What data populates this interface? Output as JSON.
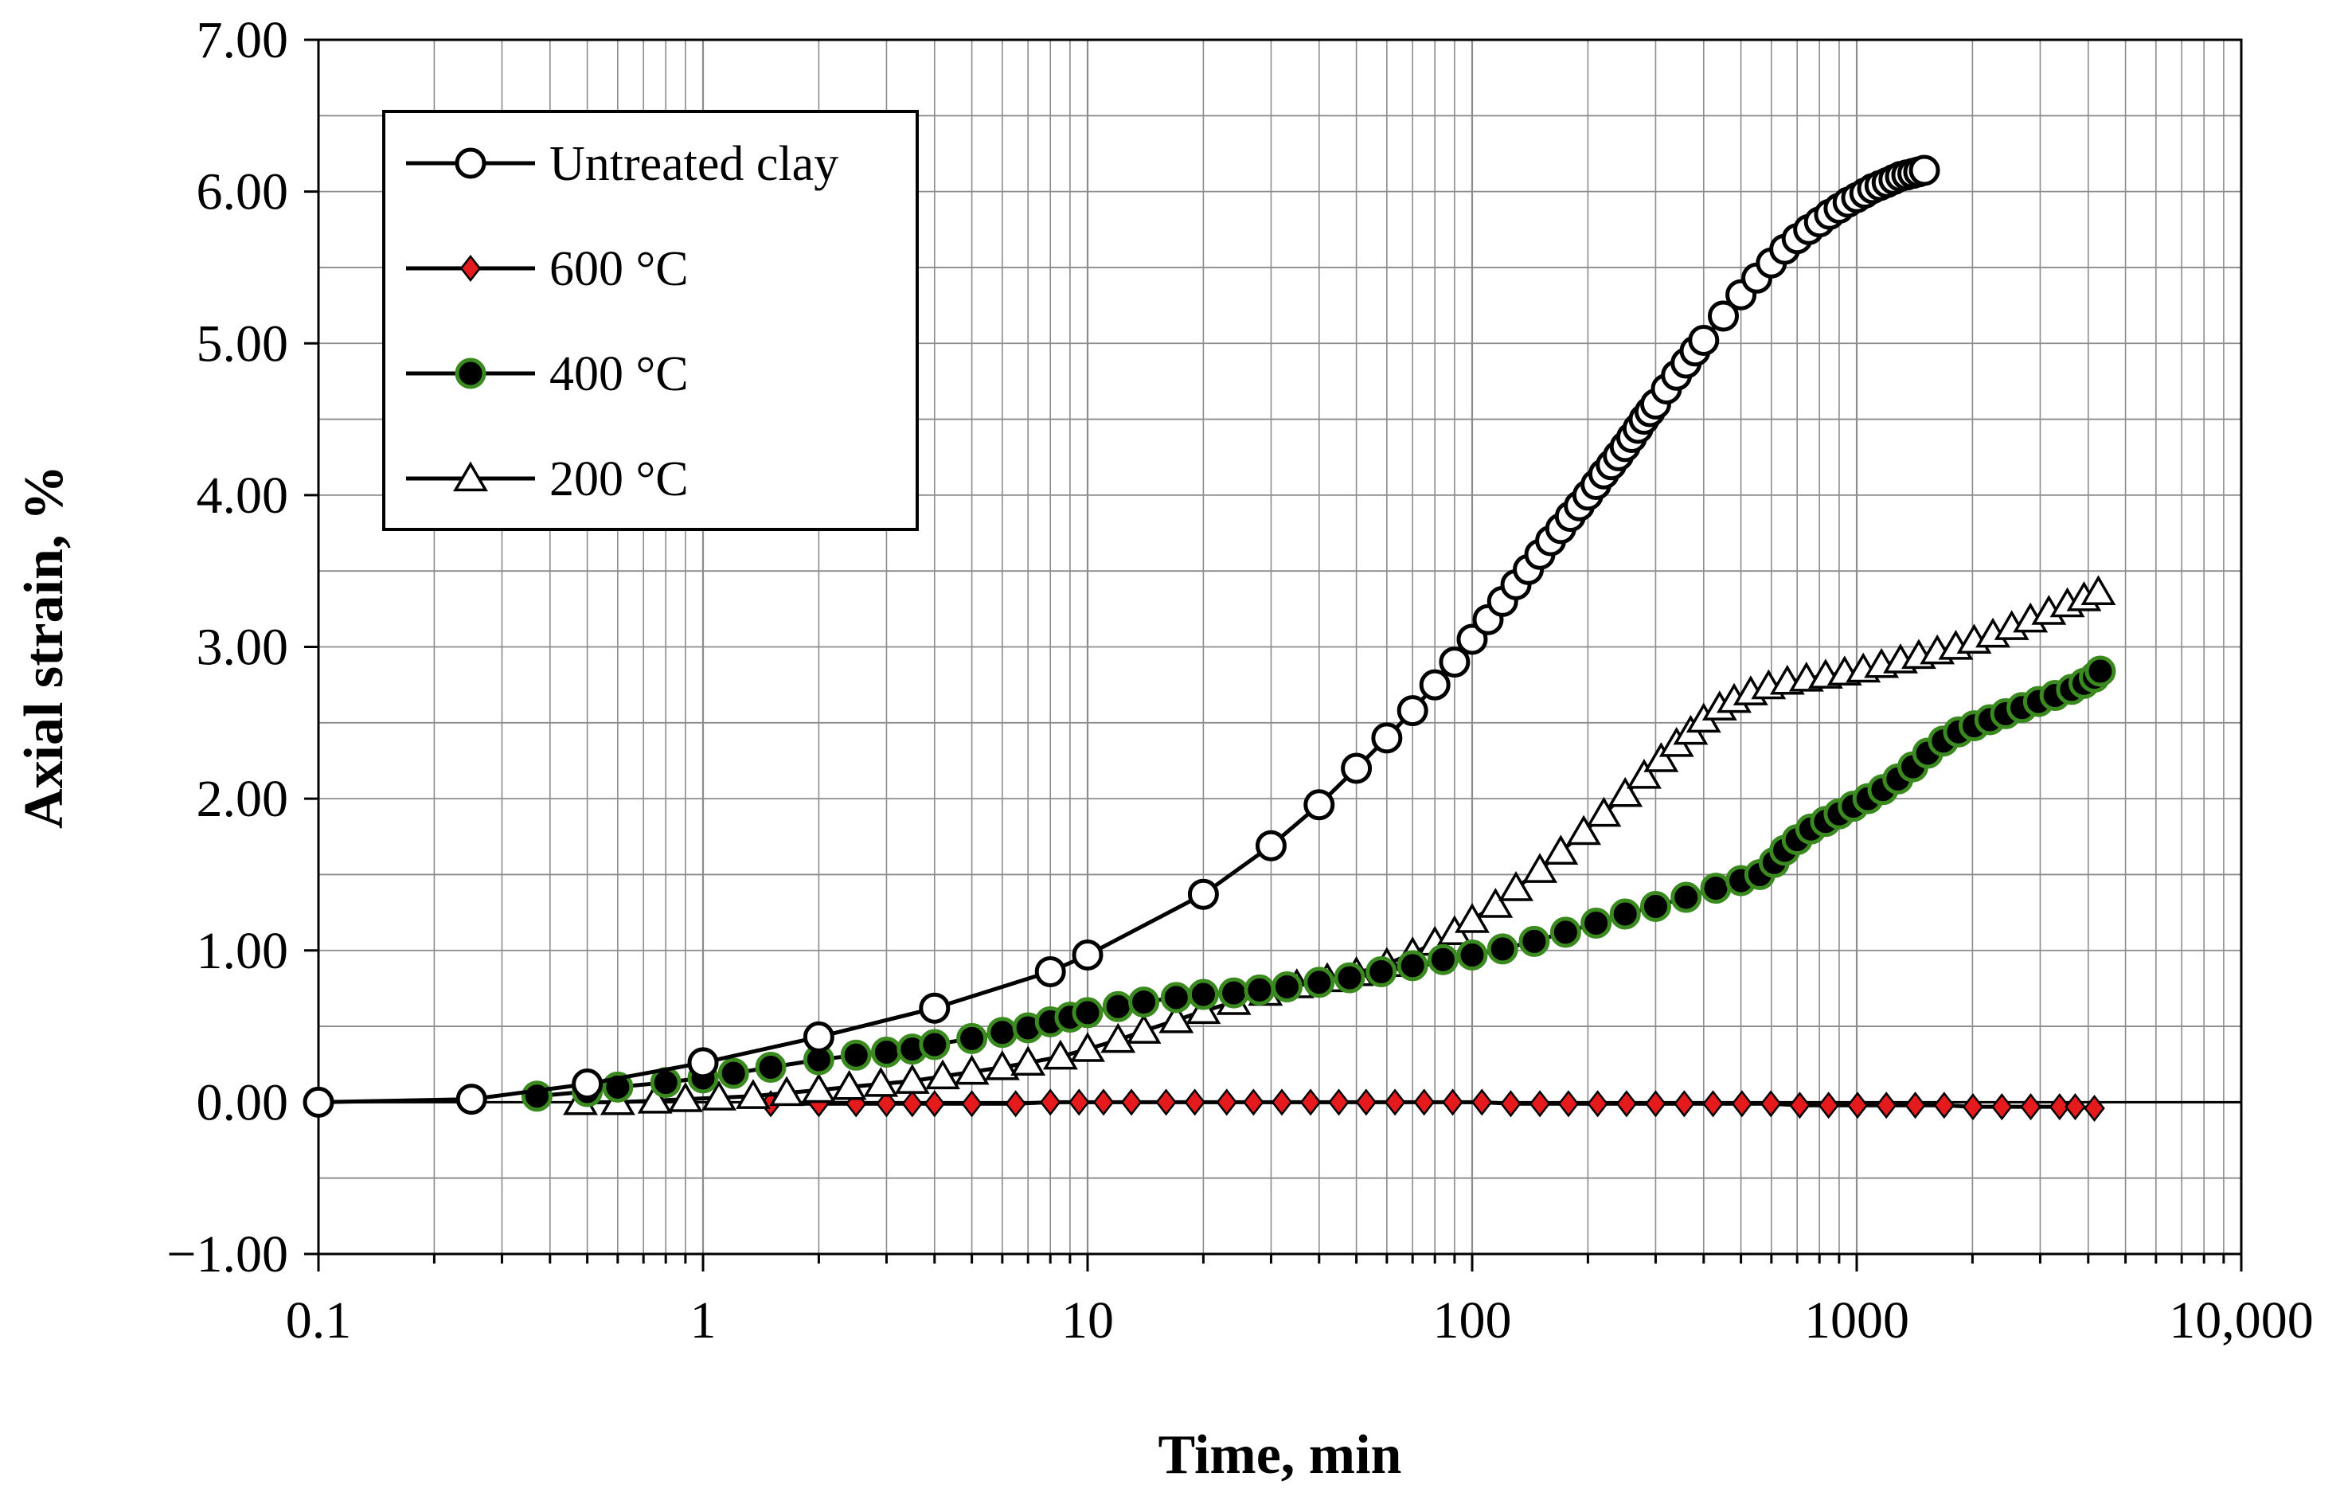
{
  "chart_data": {
    "type": "scatter",
    "xscale": "log",
    "xlabel": "Time, min",
    "ylabel": "Axial strain, %",
    "xlim": [
      0.1,
      10000
    ],
    "ylim": [
      -1.0,
      7.0
    ],
    "xticks": [
      0.1,
      1,
      10,
      100,
      1000,
      10000
    ],
    "xtick_labels": [
      "0.1",
      "1",
      "10",
      "100",
      "1000",
      "10,000"
    ],
    "yticks": [
      -1,
      0,
      1,
      2,
      3,
      4,
      5,
      6,
      7
    ],
    "ytick_labels": [
      "−1.00",
      "0.00",
      "1.00",
      "2.00",
      "3.00",
      "4.00",
      "5.00",
      "6.00",
      "7.00"
    ],
    "grid": true,
    "legend_position": "top-left",
    "series": [
      {
        "name": "Untreated clay",
        "marker": "circle",
        "marker_fill": "#ffffff",
        "marker_stroke": "#000000",
        "line_color": "#000000",
        "x": [
          0.1,
          0.25,
          0.5,
          1,
          2,
          4,
          8,
          10,
          20,
          30,
          40,
          50,
          60,
          70,
          80,
          90,
          100,
          110,
          120,
          130,
          140,
          150,
          160,
          170,
          180,
          190,
          200,
          210,
          220,
          230,
          240,
          250,
          260,
          270,
          280,
          290,
          300,
          320,
          340,
          360,
          380,
          400,
          450,
          500,
          550,
          600,
          650,
          700,
          750,
          800,
          850,
          900,
          950,
          1000,
          1050,
          1100,
          1150,
          1200,
          1250,
          1300,
          1350,
          1400,
          1450,
          1500
        ],
        "y": [
          0.0,
          0.02,
          0.12,
          0.26,
          0.43,
          0.62,
          0.86,
          0.97,
          1.37,
          1.69,
          1.96,
          2.2,
          2.4,
          2.58,
          2.75,
          2.9,
          3.05,
          3.18,
          3.3,
          3.41,
          3.51,
          3.61,
          3.7,
          3.78,
          3.86,
          3.93,
          4.0,
          4.07,
          4.14,
          4.2,
          4.26,
          4.32,
          4.38,
          4.44,
          4.5,
          4.55,
          4.6,
          4.7,
          4.79,
          4.87,
          4.95,
          5.02,
          5.18,
          5.32,
          5.43,
          5.53,
          5.62,
          5.69,
          5.75,
          5.8,
          5.85,
          5.89,
          5.93,
          5.96,
          5.99,
          6.02,
          6.04,
          6.06,
          6.08,
          6.1,
          6.11,
          6.12,
          6.13,
          6.14
        ]
      },
      {
        "name": "600 °C",
        "marker": "diamond",
        "marker_fill": "#e41a1c",
        "marker_stroke": "#000000",
        "line_color": "#000000",
        "x": [
          1.5,
          2,
          2.5,
          3,
          3.5,
          4,
          5,
          6.5,
          8,
          9.5,
          11,
          13,
          16,
          19,
          23,
          27,
          32,
          38,
          45,
          53,
          63,
          75,
          89,
          106,
          126,
          150,
          178,
          212,
          252,
          300,
          356,
          423,
          503,
          598,
          711,
          845,
          1005,
          1194,
          1420,
          1688,
          2006,
          2385,
          2835,
          3370,
          3700,
          4150
        ],
        "y": [
          -0.01,
          -0.01,
          -0.01,
          -0.01,
          -0.01,
          -0.01,
          -0.01,
          -0.01,
          0.0,
          0.0,
          0.0,
          0.0,
          0.0,
          0.0,
          0.0,
          0.0,
          0.0,
          0.0,
          0.0,
          0.0,
          0.0,
          0.0,
          0.0,
          0.0,
          -0.01,
          -0.01,
          -0.01,
          -0.01,
          -0.01,
          -0.01,
          -0.01,
          -0.01,
          -0.01,
          -0.01,
          -0.02,
          -0.02,
          -0.02,
          -0.02,
          -0.02,
          -0.02,
          -0.03,
          -0.03,
          -0.03,
          -0.03,
          -0.03,
          -0.04
        ]
      },
      {
        "name": "400 °C",
        "marker": "circle",
        "marker_fill": "#000000",
        "marker_stroke": "#3a8a20",
        "line_color": "#000000",
        "x": [
          0.37,
          0.5,
          0.6,
          0.8,
          1,
          1.2,
          1.5,
          2,
          2.5,
          3,
          3.5,
          4,
          5,
          6,
          7,
          8,
          9,
          10,
          12,
          14,
          17,
          20,
          24,
          28,
          33,
          40,
          48,
          58,
          70,
          84,
          100,
          120,
          145,
          175,
          210,
          250,
          300,
          360,
          430,
          500,
          560,
          610,
          650,
          700,
          760,
          830,
          900,
          980,
          1070,
          1170,
          1280,
          1400,
          1530,
          1680,
          1840,
          2020,
          2220,
          2440,
          2690,
          2970,
          3280,
          3620,
          3900,
          4150,
          4300
        ],
        "y": [
          0.04,
          0.07,
          0.1,
          0.13,
          0.16,
          0.19,
          0.23,
          0.28,
          0.31,
          0.33,
          0.35,
          0.38,
          0.42,
          0.46,
          0.49,
          0.53,
          0.56,
          0.59,
          0.63,
          0.66,
          0.69,
          0.71,
          0.72,
          0.74,
          0.76,
          0.79,
          0.82,
          0.86,
          0.9,
          0.94,
          0.97,
          1.01,
          1.06,
          1.12,
          1.18,
          1.24,
          1.29,
          1.35,
          1.41,
          1.46,
          1.5,
          1.58,
          1.66,
          1.73,
          1.8,
          1.85,
          1.9,
          1.95,
          2.0,
          2.06,
          2.13,
          2.21,
          2.3,
          2.38,
          2.44,
          2.48,
          2.52,
          2.56,
          2.6,
          2.64,
          2.68,
          2.72,
          2.76,
          2.8,
          2.84
        ]
      },
      {
        "name": "200 °C",
        "marker": "triangle",
        "marker_fill": "#ffffff",
        "marker_stroke": "#000000",
        "line_color": "#000000",
        "x": [
          0.48,
          0.6,
          0.75,
          0.9,
          1.1,
          1.35,
          1.65,
          2,
          2.4,
          2.9,
          3.5,
          4.2,
          5,
          6,
          7,
          8.5,
          10,
          12,
          14,
          17,
          20,
          24,
          29,
          35,
          42,
          50,
          60,
          70,
          80,
          90,
          100,
          115,
          130,
          150,
          170,
          195,
          220,
          250,
          280,
          310,
          340,
          370,
          400,
          440,
          480,
          530,
          590,
          660,
          740,
          830,
          930,
          1040,
          1160,
          1300,
          1450,
          1620,
          1810,
          2020,
          2260,
          2530,
          2830,
          3160,
          3530,
          3900,
          4250
        ],
        "y": [
          0.0,
          0.0,
          0.01,
          0.02,
          0.03,
          0.04,
          0.06,
          0.08,
          0.1,
          0.12,
          0.14,
          0.17,
          0.2,
          0.23,
          0.26,
          0.3,
          0.35,
          0.41,
          0.47,
          0.54,
          0.6,
          0.66,
          0.72,
          0.77,
          0.81,
          0.85,
          0.91,
          0.98,
          1.05,
          1.12,
          1.2,
          1.3,
          1.41,
          1.53,
          1.65,
          1.78,
          1.9,
          2.03,
          2.15,
          2.26,
          2.36,
          2.44,
          2.52,
          2.6,
          2.65,
          2.7,
          2.74,
          2.77,
          2.79,
          2.81,
          2.83,
          2.85,
          2.88,
          2.91,
          2.94,
          2.97,
          3.0,
          3.04,
          3.08,
          3.13,
          3.18,
          3.23,
          3.28,
          3.32,
          3.36
        ]
      }
    ]
  }
}
